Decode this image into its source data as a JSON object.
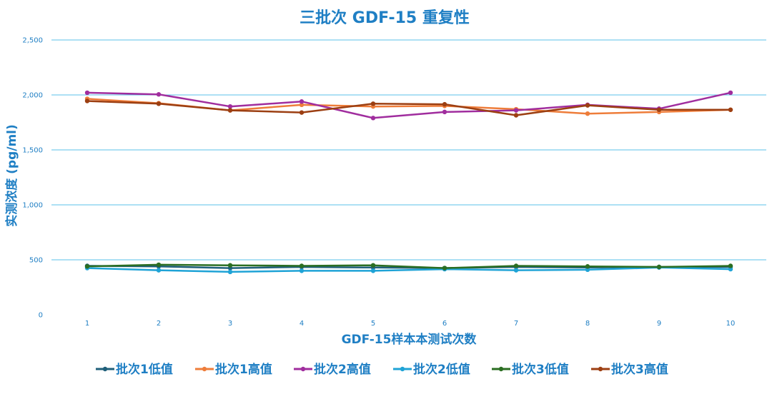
{
  "chart_data": {
    "type": "line",
    "title": "三批次 GDF-15 重复性",
    "xlabel": "GDF-15样本本测试次数",
    "ylabel": "实测浓度 (pg/ml)",
    "x": [
      1,
      2,
      3,
      4,
      5,
      6,
      7,
      8,
      9,
      10
    ],
    "x_tick_labels": [
      "1",
      "2",
      "3",
      "4",
      "5",
      "6",
      "7",
      "8",
      "9",
      "10"
    ],
    "y_tick_labels": [
      "0",
      "500",
      "1,000",
      "1,500",
      "2,000",
      "2,500"
    ],
    "y_ticks": [
      0,
      500,
      1000,
      1500,
      2000,
      2500
    ],
    "ylim": [
      0,
      2500
    ],
    "grid": true,
    "legend_position": "bottom",
    "colors": {
      "title": "#1f7fc4",
      "axis_label": "#1f7fc4",
      "tick": "#1f7fc4",
      "gridline": "#5bc0e8"
    },
    "series": [
      {
        "name": "批次1低值",
        "color": "#1f5f7a",
        "values": [
          445,
          440,
          425,
          435,
          430,
          425,
          435,
          430,
          435,
          435
        ]
      },
      {
        "name": "批次1高值",
        "color": "#ee7d3a",
        "values": [
          1965,
          1925,
          1860,
          1910,
          1895,
          1900,
          1870,
          1830,
          1845,
          1865
        ]
      },
      {
        "name": "批次2高值",
        "color": "#a02d9e",
        "values": [
          2020,
          2005,
          1895,
          1940,
          1790,
          1845,
          1860,
          1910,
          1875,
          2020
        ]
      },
      {
        "name": "批次2低值",
        "color": "#1fa3d6",
        "values": [
          425,
          405,
          390,
          400,
          400,
          415,
          405,
          410,
          430,
          415
        ]
      },
      {
        "name": "批次3低值",
        "color": "#2b6e22",
        "values": [
          440,
          455,
          450,
          445,
          450,
          425,
          445,
          440,
          435,
          445
        ]
      },
      {
        "name": "批次3高值",
        "color": "#9c3f12",
        "values": [
          1945,
          1920,
          1860,
          1840,
          1920,
          1915,
          1815,
          1905,
          1865,
          1865
        ]
      }
    ]
  }
}
